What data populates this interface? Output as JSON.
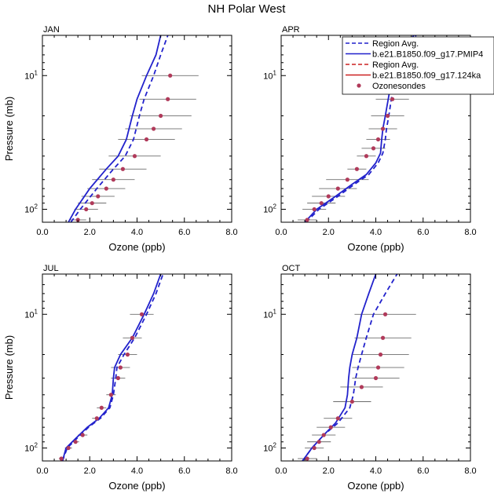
{
  "title": "NH Polar West",
  "legend": {
    "entries": [
      {
        "label": "Region Avg.",
        "style": "dashed",
        "color": "#2020cc"
      },
      {
        "label": "b.e21.B1850.f09_g17.PMIP4",
        "style": "solid",
        "color": "#2020cc"
      },
      {
        "label": "Region Avg.",
        "style": "dashed",
        "color": "#cc2020"
      },
      {
        "label": "b.e21.B1850.f09_g17.124ka",
        "style": "solid",
        "color": "#cc2020"
      },
      {
        "label": "Ozonesondes",
        "style": "marker",
        "color": "#b03a5a"
      }
    ]
  },
  "chart_data": [
    {
      "type": "line",
      "panel": "JAN",
      "xlabel": "Ozone (ppb)",
      "ylabel": "Pressure (mb)",
      "xlim": [
        0,
        8
      ],
      "ylim_log": [
        125,
        5
      ],
      "xticks": [
        "0.0",
        "2.0",
        "4.0",
        "6.0",
        "8.0"
      ],
      "yticks": [
        "10^1",
        "10^2"
      ],
      "series": [
        {
          "name": "b.e21.B1850.f09_g17.PMIP4 (solid)",
          "points": [
            [
              1.1,
              125
            ],
            [
              1.4,
              100
            ],
            [
              2.0,
              70
            ],
            [
              2.7,
              50
            ],
            [
              3.2,
              40
            ],
            [
              3.55,
              30
            ],
            [
              3.8,
              20
            ],
            [
              4.0,
              15
            ],
            [
              4.4,
              10
            ],
            [
              4.8,
              7
            ],
            [
              5.0,
              5
            ]
          ]
        },
        {
          "name": "Region Avg. (dashed)",
          "points": [
            [
              1.2,
              125
            ],
            [
              1.6,
              100
            ],
            [
              2.3,
              70
            ],
            [
              3.0,
              50
            ],
            [
              3.5,
              40
            ],
            [
              3.85,
              30
            ],
            [
              4.1,
              20
            ],
            [
              4.3,
              15
            ],
            [
              4.7,
              10
            ],
            [
              5.0,
              7
            ],
            [
              5.3,
              5
            ]
          ]
        }
      ],
      "sondes": [
        {
          "x": 1.5,
          "p": 120,
          "err": 0.35
        },
        {
          "x": 1.85,
          "p": 100,
          "err": 0.5
        },
        {
          "x": 2.1,
          "p": 90,
          "err": 0.6
        },
        {
          "x": 2.35,
          "p": 80,
          "err": 0.7
        },
        {
          "x": 2.7,
          "p": 70,
          "err": 0.8
        },
        {
          "x": 3.0,
          "p": 60,
          "err": 0.9
        },
        {
          "x": 3.4,
          "p": 50,
          "err": 1.0
        },
        {
          "x": 3.9,
          "p": 40,
          "err": 1.1
        },
        {
          "x": 4.4,
          "p": 30,
          "err": 1.2
        },
        {
          "x": 4.7,
          "p": 25,
          "err": 1.2
        },
        {
          "x": 5.0,
          "p": 20,
          "err": 1.3
        },
        {
          "x": 5.3,
          "p": 15,
          "err": 1.2
        },
        {
          "x": 5.4,
          "p": 10,
          "err": 1.2
        }
      ]
    },
    {
      "type": "line",
      "panel": "APR",
      "xlabel": "Ozone (ppb)",
      "ylabel": "",
      "xlim": [
        0,
        8
      ],
      "ylim_log": [
        125,
        5
      ],
      "xticks": [
        "0.0",
        "2.0",
        "4.0",
        "6.0",
        "8.0"
      ],
      "yticks": [
        "10^1",
        "10^2"
      ],
      "series": [
        {
          "name": "b.e21.B1850.f09_g17.PMIP4 (solid)",
          "points": [
            [
              1.0,
              125
            ],
            [
              1.5,
              100
            ],
            [
              2.3,
              80
            ],
            [
              3.0,
              65
            ],
            [
              3.6,
              55
            ],
            [
              4.0,
              45
            ],
            [
              4.2,
              38
            ],
            [
              4.25,
              30
            ],
            [
              4.3,
              25
            ],
            [
              4.4,
              20
            ],
            [
              4.7,
              10
            ],
            [
              5.1,
              7
            ],
            [
              5.6,
              5
            ]
          ]
        },
        {
          "name": "Region Avg. (dashed)",
          "points": [
            [
              1.05,
              125
            ],
            [
              1.6,
              100
            ],
            [
              2.4,
              80
            ],
            [
              3.1,
              65
            ],
            [
              3.7,
              55
            ],
            [
              4.1,
              45
            ],
            [
              4.3,
              38
            ],
            [
              4.4,
              30
            ],
            [
              4.45,
              25
            ],
            [
              4.55,
              20
            ],
            [
              4.8,
              10
            ],
            [
              5.2,
              7
            ],
            [
              5.7,
              5
            ]
          ]
        }
      ],
      "sondes": [
        {
          "x": 1.1,
          "p": 120,
          "err": 0.4
        },
        {
          "x": 1.4,
          "p": 100,
          "err": 0.5
        },
        {
          "x": 1.7,
          "p": 90,
          "err": 0.6
        },
        {
          "x": 2.0,
          "p": 80,
          "err": 0.7
        },
        {
          "x": 2.4,
          "p": 70,
          "err": 0.8
        },
        {
          "x": 2.8,
          "p": 60,
          "err": 0.9
        },
        {
          "x": 3.2,
          "p": 50,
          "err": 0.4
        },
        {
          "x": 3.6,
          "p": 40,
          "err": 0.4
        },
        {
          "x": 3.9,
          "p": 35,
          "err": 0.5
        },
        {
          "x": 4.1,
          "p": 30,
          "err": 0.5
        },
        {
          "x": 4.3,
          "p": 25,
          "err": 0.6
        },
        {
          "x": 4.5,
          "p": 20,
          "err": 0.7
        },
        {
          "x": 4.7,
          "p": 15,
          "err": 0.7
        }
      ]
    },
    {
      "type": "line",
      "panel": "JUL",
      "xlabel": "Ozone (ppb)",
      "ylabel": "Pressure (mb)",
      "xlim": [
        0,
        8
      ],
      "ylim_log": [
        125,
        5
      ],
      "xticks": [
        "0.0",
        "2.0",
        "4.0",
        "6.0",
        "8.0"
      ],
      "yticks": [
        "10^1",
        "10^2"
      ],
      "series": [
        {
          "name": "b.e21.B1850.f09_g17.PMIP4 (solid)",
          "points": [
            [
              0.85,
              125
            ],
            [
              1.0,
              100
            ],
            [
              1.4,
              85
            ],
            [
              1.9,
              70
            ],
            [
              2.4,
              60
            ],
            [
              2.8,
              50
            ],
            [
              2.95,
              40
            ],
            [
              3.0,
              30
            ],
            [
              3.05,
              25
            ],
            [
              3.3,
              20
            ],
            [
              3.8,
              15
            ],
            [
              4.3,
              10
            ],
            [
              4.7,
              7
            ],
            [
              5.0,
              5
            ]
          ]
        },
        {
          "name": "Region Avg. (dashed)",
          "points": [
            [
              0.85,
              125
            ],
            [
              1.05,
              100
            ],
            [
              1.45,
              85
            ],
            [
              1.95,
              70
            ],
            [
              2.45,
              60
            ],
            [
              2.85,
              50
            ],
            [
              3.0,
              40
            ],
            [
              3.1,
              30
            ],
            [
              3.15,
              25
            ],
            [
              3.45,
              20
            ],
            [
              3.9,
              15
            ],
            [
              4.4,
              10
            ],
            [
              4.8,
              7
            ],
            [
              5.1,
              5
            ]
          ]
        }
      ],
      "sondes": [
        {
          "x": 0.8,
          "p": 120,
          "err": 0.1
        },
        {
          "x": 1.1,
          "p": 100,
          "err": 0.15
        },
        {
          "x": 1.4,
          "p": 90,
          "err": 0.15
        },
        {
          "x": 1.7,
          "p": 80,
          "err": 0.2
        },
        {
          "x": 2.3,
          "p": 60,
          "err": 0.2
        },
        {
          "x": 2.5,
          "p": 50,
          "err": 0.2
        },
        {
          "x": 2.9,
          "p": 40,
          "err": 0.2
        },
        {
          "x": 3.2,
          "p": 30,
          "err": 0.3
        },
        {
          "x": 3.3,
          "p": 25,
          "err": 0.4
        },
        {
          "x": 3.6,
          "p": 20,
          "err": 0.4
        },
        {
          "x": 3.8,
          "p": 15,
          "err": 0.4
        },
        {
          "x": 4.2,
          "p": 10,
          "err": 0.5
        }
      ]
    },
    {
      "type": "line",
      "panel": "OCT",
      "xlabel": "Ozone (ppb)",
      "ylabel": "",
      "xlim": [
        0,
        8
      ],
      "ylim_log": [
        125,
        5
      ],
      "xticks": [
        "0.0",
        "2.0",
        "4.0",
        "6.0",
        "8.0"
      ],
      "yticks": [
        "10^1",
        "10^2"
      ],
      "series": [
        {
          "name": "b.e21.B1850.f09_g17.PMIP4 (solid)",
          "points": [
            [
              0.9,
              125
            ],
            [
              1.3,
              100
            ],
            [
              1.8,
              80
            ],
            [
              2.3,
              65
            ],
            [
              2.7,
              50
            ],
            [
              2.8,
              40
            ],
            [
              2.85,
              30
            ],
            [
              2.9,
              25
            ],
            [
              3.0,
              20
            ],
            [
              3.2,
              15
            ],
            [
              3.4,
              10
            ],
            [
              3.7,
              7
            ],
            [
              4.0,
              5
            ]
          ]
        },
        {
          "name": "Region Avg. (dashed)",
          "points": [
            [
              0.9,
              125
            ],
            [
              1.3,
              100
            ],
            [
              1.8,
              80
            ],
            [
              2.4,
              65
            ],
            [
              2.9,
              50
            ],
            [
              3.05,
              40
            ],
            [
              3.15,
              30
            ],
            [
              3.25,
              25
            ],
            [
              3.4,
              20
            ],
            [
              3.6,
              15
            ],
            [
              3.9,
              10
            ],
            [
              4.4,
              7
            ],
            [
              4.9,
              5
            ]
          ]
        }
      ],
      "sondes": [
        {
          "x": 1.1,
          "p": 120,
          "err": 0.4
        },
        {
          "x": 1.4,
          "p": 100,
          "err": 0.4
        },
        {
          "x": 1.6,
          "p": 90,
          "err": 0.5
        },
        {
          "x": 1.8,
          "p": 80,
          "err": 0.5
        },
        {
          "x": 2.1,
          "p": 70,
          "err": 0.6
        },
        {
          "x": 2.4,
          "p": 60,
          "err": 0.6
        },
        {
          "x": 3.0,
          "p": 45,
          "err": 0.8
        },
        {
          "x": 3.4,
          "p": 35,
          "err": 0.9
        },
        {
          "x": 4.0,
          "p": 30,
          "err": 1.0
        },
        {
          "x": 4.1,
          "p": 25,
          "err": 1.1
        },
        {
          "x": 4.2,
          "p": 20,
          "err": 1.2
        },
        {
          "x": 4.3,
          "p": 15,
          "err": 1.2
        },
        {
          "x": 4.4,
          "p": 10,
          "err": 1.3
        }
      ]
    }
  ]
}
